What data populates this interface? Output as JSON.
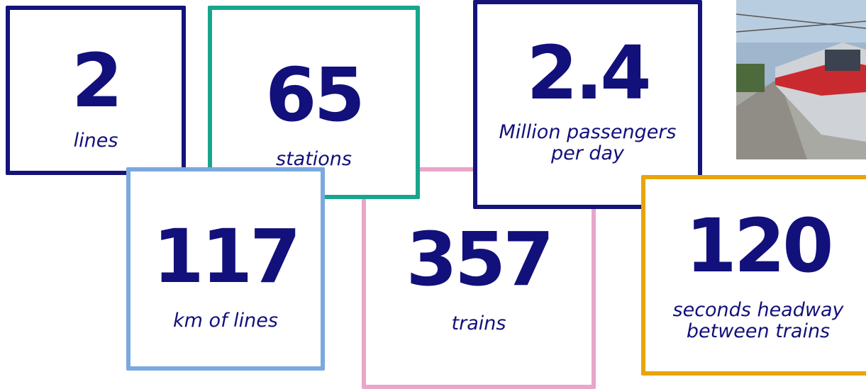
{
  "items": [
    {
      "number": "2",
      "label": [
        "lines"
      ],
      "color": "#14137a"
    },
    {
      "number": "65",
      "label": [
        "stations"
      ],
      "color": "#17a68c"
    },
    {
      "number": "2.4",
      "label": [
        "Million passengers",
        "per day"
      ],
      "color": "#14137a"
    },
    {
      "number": "357",
      "label": [
        "trains"
      ],
      "color": "#e8a6c8"
    },
    {
      "number": "117",
      "label": [
        "km of lines"
      ],
      "color": "#7aa9de"
    },
    {
      "number": "120",
      "label": [
        "seconds headway",
        "between trains"
      ],
      "color": "#e8a50a"
    }
  ]
}
